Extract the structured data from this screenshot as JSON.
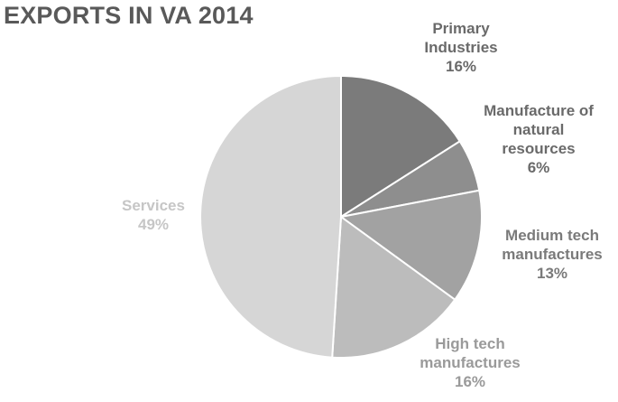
{
  "chart_data": {
    "type": "pie",
    "title": "EXPORTS IN VA 2014",
    "slices": [
      {
        "label": [
          "Primary",
          "Industries"
        ],
        "percent_label": "16%",
        "value": 16,
        "color": "#7b7b7b",
        "label_color": "#6a6a6a"
      },
      {
        "label": [
          "Manufacture of",
          "natural",
          "resources"
        ],
        "percent_label": "6%",
        "value": 6,
        "color": "#8e8e8e",
        "label_color": "#6a6a6a"
      },
      {
        "label": [
          "Medium tech",
          "manufactures"
        ],
        "percent_label": "13%",
        "value": 13,
        "color": "#a2a2a2",
        "label_color": "#7a7a7a"
      },
      {
        "label": [
          "High tech",
          "manufactures"
        ],
        "percent_label": "16%",
        "value": 16,
        "color": "#bcbcbc",
        "label_color": "#9a9a9a"
      },
      {
        "label": [
          "Services"
        ],
        "percent_label": "49%",
        "value": 49,
        "color": "#d6d6d6",
        "label_color": "#c6c6c6"
      }
    ]
  }
}
